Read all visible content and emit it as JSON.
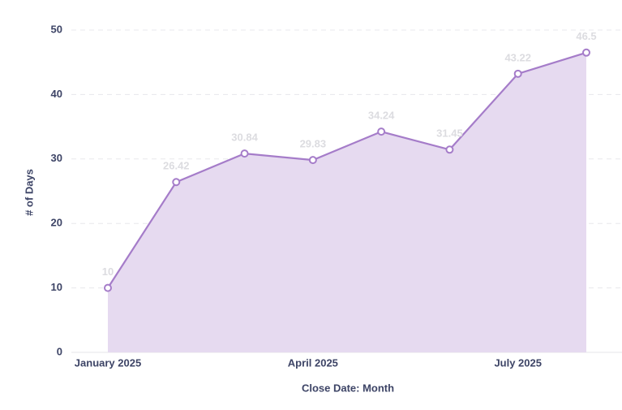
{
  "chart_data": {
    "type": "area",
    "x_label": "Close Date: Month",
    "y_label": "# of Days",
    "categories": [
      "January 2025",
      null,
      null,
      "April 2025",
      null,
      null,
      "July 2025",
      null
    ],
    "series": [
      {
        "name": "# of Days",
        "color": "#a57cc9",
        "fill": "#e6daf0",
        "values": [
          10,
          26.42,
          30.84,
          29.83,
          34.24,
          31.45,
          43.22,
          46.5
        ]
      }
    ],
    "ylim": [
      0,
      50
    ],
    "yticks": [
      0,
      10,
      20,
      30,
      40,
      50
    ],
    "grid": true,
    "data_labels": true
  }
}
